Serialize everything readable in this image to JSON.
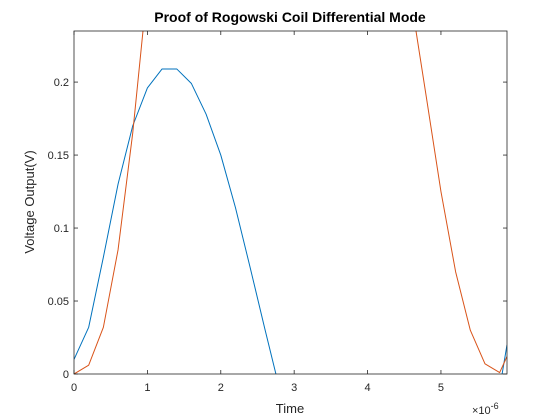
{
  "chart_data": {
    "type": "line",
    "title": "Proof of Rogowski Coil Differential Mode",
    "xlabel": "Time",
    "ylabel": "Voltage Output(V)",
    "x_exponent_label": "×10",
    "x_exponent_power": "-6",
    "xlim": [
      0,
      5.9
    ],
    "ylim": [
      0,
      0.235
    ],
    "x_ticks": [
      0,
      1,
      2,
      3,
      4,
      5
    ],
    "x_tick_labels": [
      "0",
      "1",
      "2",
      "3",
      "4",
      "5"
    ],
    "y_ticks": [
      0,
      0.05,
      0.1,
      0.15,
      0.2
    ],
    "y_tick_labels": [
      "0",
      "0.05",
      "0.1",
      "0.15",
      "0.2"
    ],
    "grid": false,
    "series": [
      {
        "color": "#0072BD",
        "x": [
          0,
          0.2,
          0.4,
          0.6,
          0.8,
          1.0,
          1.2,
          1.4,
          1.6,
          1.8,
          2.0,
          2.2,
          2.4,
          2.6,
          2.8,
          5.8,
          5.9
        ],
        "y": [
          0.01,
          0.032,
          0.08,
          0.13,
          0.17,
          0.196,
          0.209,
          0.209,
          0.199,
          0.178,
          0.15,
          0.114,
          0.073,
          0.031,
          -0.01,
          -0.01,
          0.02
        ]
      },
      {
        "color": "#D95319",
        "x": [
          0,
          0.2,
          0.4,
          0.6,
          0.8,
          0.94,
          1.1,
          4.5,
          4.66,
          4.8,
          5.0,
          5.2,
          5.4,
          5.6,
          5.8,
          5.9
        ],
        "y": [
          0.0,
          0.006,
          0.032,
          0.085,
          0.165,
          0.235,
          0.31,
          0.31,
          0.235,
          0.19,
          0.125,
          0.07,
          0.03,
          0.007,
          0.001,
          0.012
        ]
      }
    ]
  }
}
